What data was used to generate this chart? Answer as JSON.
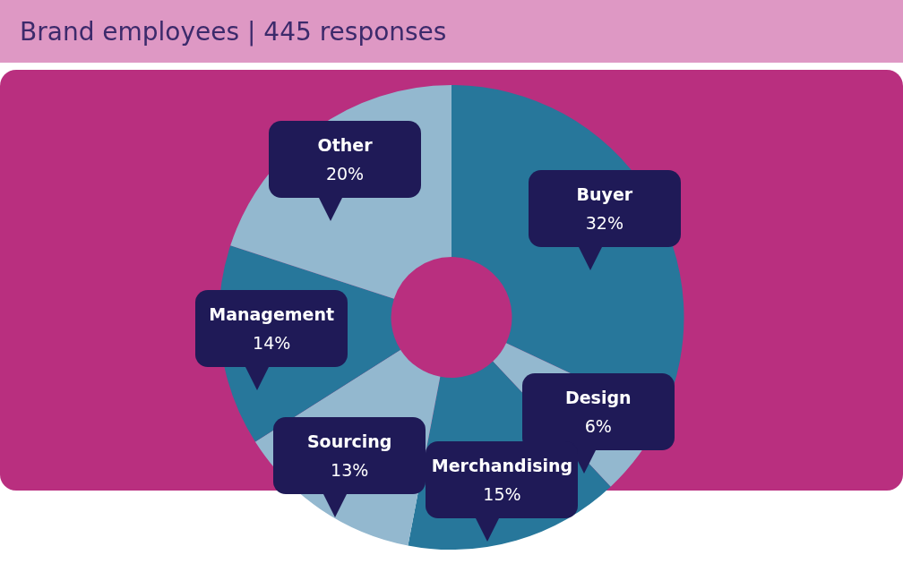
{
  "chart_data": {
    "type": "donut",
    "title": "Brand employees | 445 responses",
    "categories": [
      "Buyer",
      "Design",
      "Merchandising",
      "Sourcing",
      "Management",
      "Other"
    ],
    "values": [
      32,
      6,
      15,
      13,
      14,
      20
    ],
    "value_labels": [
      "32%",
      "6%",
      "15%",
      "13%",
      "14%",
      "20%"
    ],
    "colors": [
      "#27779b",
      "#93b8cf",
      "#27779b",
      "#93b8cf",
      "#27779b",
      "#93b8cf"
    ],
    "legend": false
  }
}
